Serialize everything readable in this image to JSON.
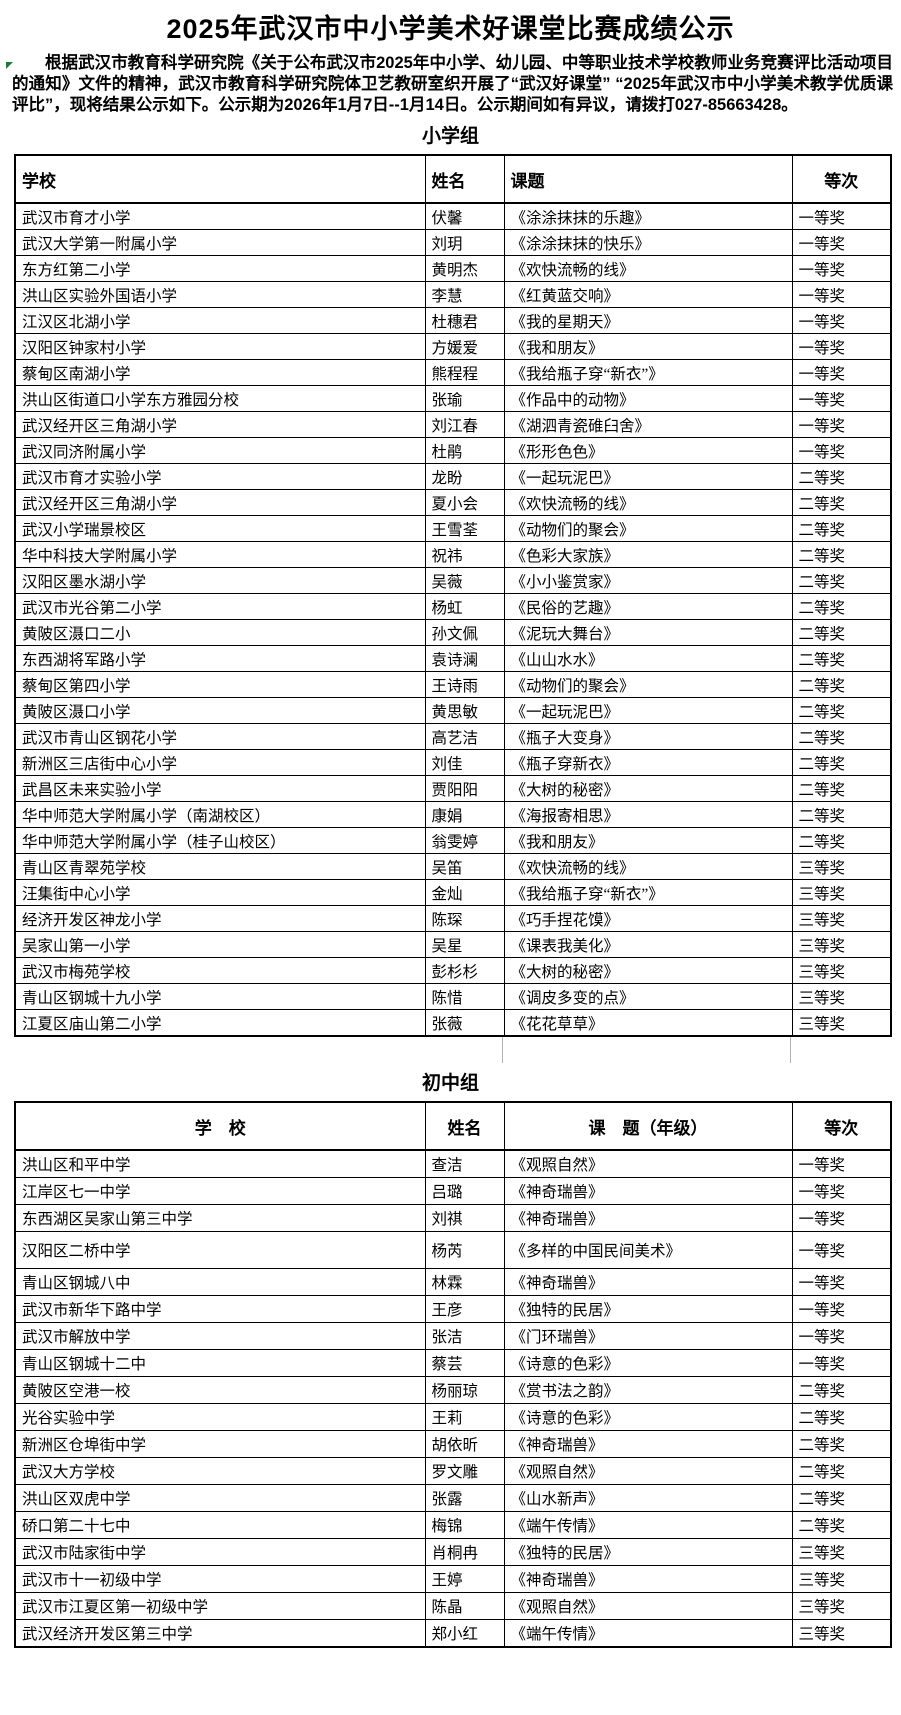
{
  "document": {
    "title": "2025年武汉市中小学美术好课堂比赛成绩公示",
    "intro": "根据武汉市教育科学研究院《关于公布武汉市2025年中小学、幼儿园、中等职业技术学校教师业务竞赛评比活动项目的通知》文件的精神，武汉市教育科学研究院体卫艺教研室织开展了“武汉好课堂” “2025年武汉市中小学美术教学优质课评比”，现将结果公示如下。公示期为2026年1月7日--1月14日。公示期间如有异议，请拨打027-85663428。"
  },
  "colors": {
    "text": "#000000",
    "background": "#ffffff",
    "table_border": "#000000",
    "cell_marker_green": "#1e7b34"
  },
  "sections": [
    {
      "title": "小学组",
      "headers": [
        "学校",
        "姓名",
        "课题",
        "等次"
      ],
      "rows": [
        [
          "武汉市育才小学",
          "伏馨",
          "《涂涂抹抹的乐趣》",
          "一等奖"
        ],
        [
          "武汉大学第一附属小学",
          "刘玥",
          "《涂涂抹抹的快乐》",
          "一等奖"
        ],
        [
          "东方红第二小学",
          "黄明杰",
          "《欢快流畅的线》",
          "一等奖"
        ],
        [
          "洪山区实验外国语小学",
          "李慧",
          "《红黄蓝交响》",
          "一等奖"
        ],
        [
          "江汉区北湖小学",
          "杜穗君",
          "《我的星期天》",
          "一等奖"
        ],
        [
          "汉阳区钟家村小学",
          "方媛爱",
          "《我和朋友》",
          "一等奖"
        ],
        [
          "蔡甸区南湖小学",
          "熊程程",
          "《我给瓶子穿“新衣”》",
          "一等奖"
        ],
        [
          "洪山区街道口小学东方雅园分校",
          "张瑜",
          "《作品中的动物》",
          "一等奖"
        ],
        [
          "武汉经开区三角湖小学",
          "刘江春",
          "《湖泗青瓷碓臼舍》",
          "一等奖"
        ],
        [
          "武汉同济附属小学",
          "杜鹃",
          "《形形色色》",
          "一等奖"
        ],
        [
          "武汉市育才实验小学",
          "龙盼",
          "《一起玩泥巴》",
          "二等奖"
        ],
        [
          "武汉经开区三角湖小学",
          "夏小会",
          "《欢快流畅的线》",
          "二等奖"
        ],
        [
          "武汉小学瑞景校区",
          "王雪荃",
          "《动物们的聚会》",
          "二等奖"
        ],
        [
          "华中科技大学附属小学",
          "祝祎",
          "《色彩大家族》",
          "二等奖"
        ],
        [
          "汉阳区墨水湖小学",
          "吴薇",
          "《小小鉴赏家》",
          "二等奖"
        ],
        [
          "武汉市光谷第二小学",
          "杨虹",
          "《民俗的艺趣》",
          "二等奖"
        ],
        [
          "黄陂区滠口二小",
          "孙文佩",
          "《泥玩大舞台》",
          "二等奖"
        ],
        [
          "东西湖将军路小学",
          "袁诗澜",
          "《山山水水》",
          "二等奖"
        ],
        [
          "蔡甸区第四小学",
          "王诗雨",
          "《动物们的聚会》",
          "二等奖"
        ],
        [
          "黄陂区滠口小学",
          "黄思敏",
          "《一起玩泥巴》",
          "二等奖"
        ],
        [
          "武汉市青山区钢花小学",
          "高艺洁",
          "《瓶子大变身》",
          "二等奖"
        ],
        [
          "新洲区三店街中心小学",
          "刘佳",
          "《瓶子穿新衣》",
          "二等奖"
        ],
        [
          "武昌区未来实验小学",
          "贾阳阳",
          "《大树的秘密》",
          "二等奖"
        ],
        [
          "华中师范大学附属小学（南湖校区）",
          "康娟",
          "《海报寄相思》",
          "二等奖"
        ],
        [
          "华中师范大学附属小学（桂子山校区）",
          "翁雯婷",
          "《我和朋友》",
          "二等奖"
        ],
        [
          "青山区青翠苑学校",
          "吴笛",
          "《欢快流畅的线》",
          "三等奖"
        ],
        [
          "汪集街中心小学",
          "金灿",
          "《我给瓶子穿“新衣”》",
          "三等奖"
        ],
        [
          "经济开发区神龙小学",
          "陈琛",
          "《巧手捏花馍》",
          "三等奖"
        ],
        [
          "吴家山第一小学",
          "吴星",
          "《课表我美化》",
          "三等奖"
        ],
        [
          "武汉市梅苑学校",
          "彭杉杉",
          "《大树的秘密》",
          "三等奖"
        ],
        [
          "青山区钢城十九小学",
          "陈惜",
          "《调皮多变的点》",
          "三等奖"
        ],
        [
          "江夏区庙山第二小学",
          "张薇",
          "《花花草草》",
          "三等奖"
        ]
      ]
    },
    {
      "title": "初中组",
      "headers": [
        "学　校",
        "姓名",
        "课　题（年级）",
        "等次"
      ],
      "rows": [
        [
          "洪山区和平中学",
          "查洁",
          "《观照自然》",
          "一等奖"
        ],
        [
          "江岸区七一中学",
          "吕璐",
          "《神奇瑞兽》",
          "一等奖"
        ],
        [
          "东西湖区吴家山第三中学",
          "刘祺",
          "《神奇瑞兽》",
          "一等奖"
        ],
        [
          "汉阳区二桥中学",
          "杨芮",
          "《多样的中国民间美术》",
          "一等奖"
        ],
        [
          "青山区钢城八中",
          "林霖",
          "《神奇瑞兽》",
          "一等奖"
        ],
        [
          "武汉市新华下路中学",
          "王彦",
          "《独特的民居》",
          "一等奖"
        ],
        [
          "武汉市解放中学",
          "张洁",
          "《门环瑞兽》",
          "一等奖"
        ],
        [
          "青山区钢城十二中",
          "蔡芸",
          "《诗意的色彩》",
          "一等奖"
        ],
        [
          "黄陂区空港一校",
          "杨丽琼",
          "《赏书法之韵》",
          "二等奖"
        ],
        [
          "光谷实验中学",
          "王莉",
          "《诗意的色彩》",
          "二等奖"
        ],
        [
          "新洲区仓埠街中学",
          "胡依昕",
          "《神奇瑞兽》",
          "二等奖"
        ],
        [
          "武汉大方学校",
          "罗文雕",
          "《观照自然》",
          "二等奖"
        ],
        [
          "洪山区双虎中学",
          "张露",
          "《山水新声》",
          "二等奖"
        ],
        [
          "硚口第二十七中",
          "梅锦",
          "《端午传情》",
          "二等奖"
        ],
        [
          "武汉市陆家街中学",
          "肖桐冉",
          "《独特的民居》",
          "三等奖"
        ],
        [
          "武汉市十一初级中学",
          "王婷",
          "《神奇瑞兽》",
          "三等奖"
        ],
        [
          "武汉市江夏区第一初级中学",
          "陈晶",
          "《观照自然》",
          "三等奖"
        ],
        [
          "武汉经济开发区第三中学",
          "郑小红",
          "《端午传情》",
          "三等奖"
        ]
      ]
    }
  ]
}
